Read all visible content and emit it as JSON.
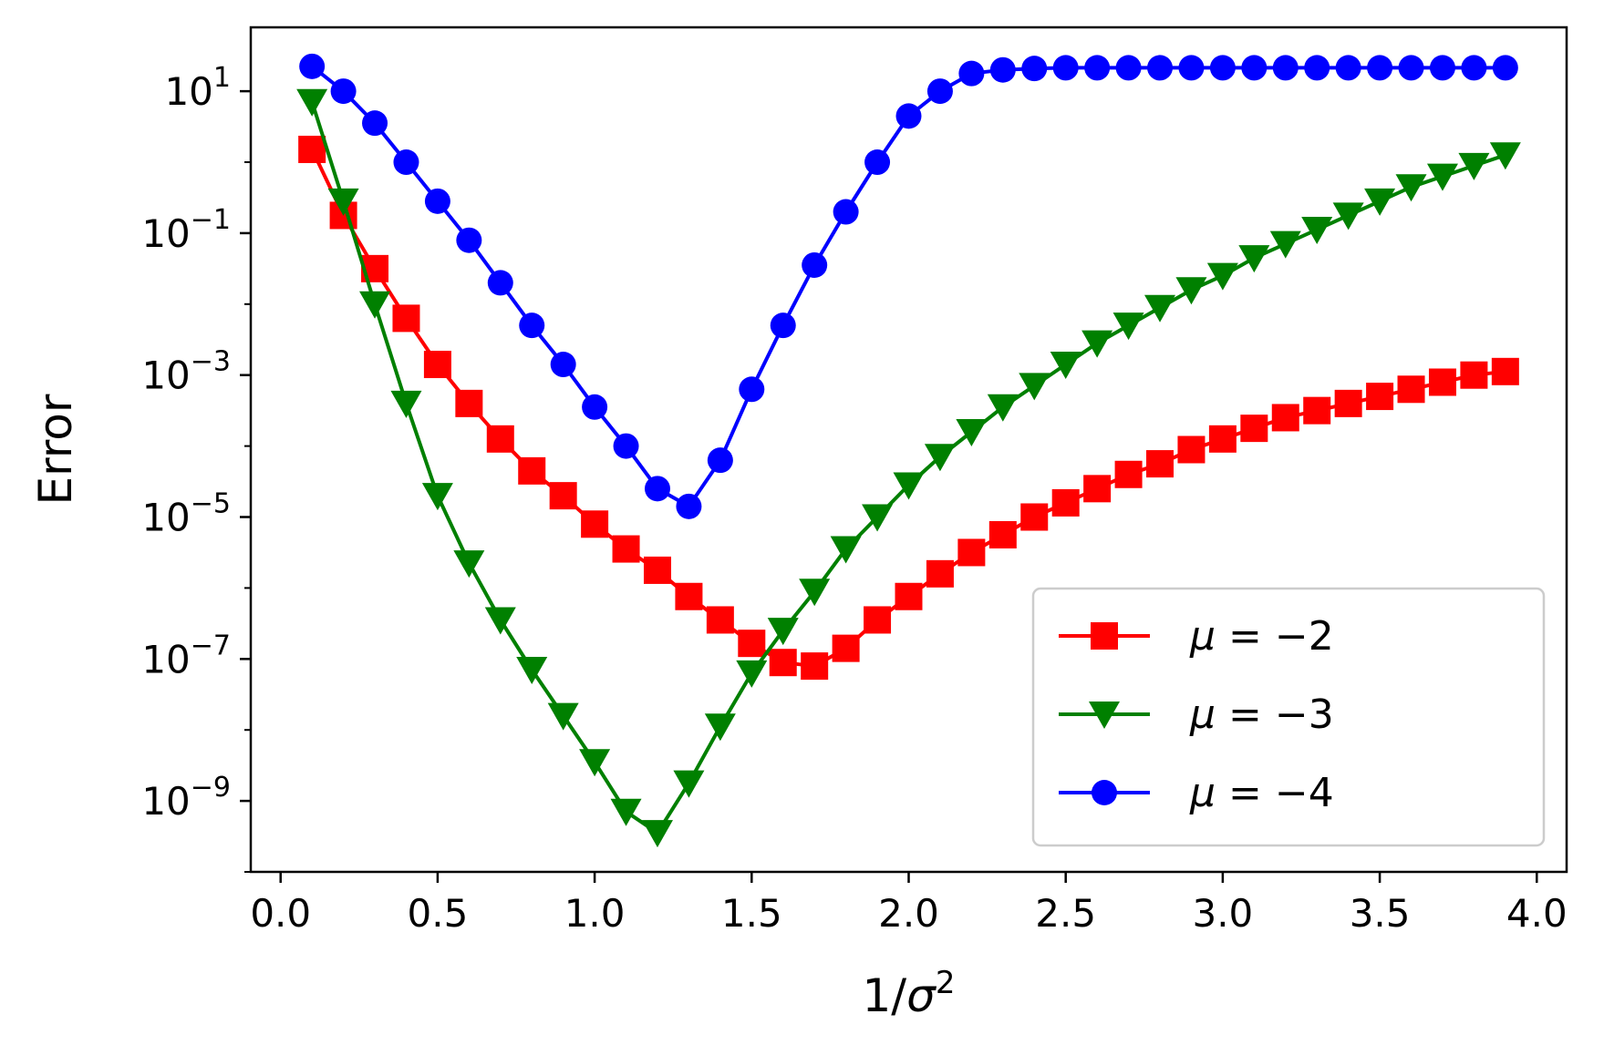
{
  "chart_data": {
    "type": "line",
    "title": "",
    "xlabel": "1/σ²",
    "ylabel": "Error",
    "xscale": "linear",
    "yscale": "log",
    "xlim": [
      -0.095,
      4.095
    ],
    "ylim_log10": [
      -10.0,
      1.9
    ],
    "xticks": [
      0.0,
      0.5,
      1.0,
      1.5,
      2.0,
      2.5,
      3.0,
      3.5,
      4.0
    ],
    "xtick_labels": [
      "0.0",
      "0.5",
      "1.0",
      "1.5",
      "2.0",
      "2.5",
      "3.0",
      "3.5",
      "4.0"
    ],
    "yticks_log10": [
      1,
      -1,
      -3,
      -5,
      -7,
      -9
    ],
    "ytick_labels": [
      {
        "base": "10",
        "exp": "1"
      },
      {
        "base": "10",
        "exp": "−1"
      },
      {
        "base": "10",
        "exp": "−3"
      },
      {
        "base": "10",
        "exp": "−5"
      },
      {
        "base": "10",
        "exp": "−7"
      },
      {
        "base": "10",
        "exp": "−9"
      }
    ],
    "legend_position": "lower-right",
    "x": [
      0.1,
      0.2,
      0.3,
      0.4,
      0.5,
      0.6,
      0.7,
      0.8,
      0.9,
      1.0,
      1.1,
      1.2,
      1.3,
      1.4,
      1.5,
      1.6,
      1.7,
      1.8,
      1.9,
      2.0,
      2.1,
      2.2,
      2.3,
      2.4,
      2.5,
      2.6,
      2.7,
      2.8,
      2.9,
      3.0,
      3.1,
      3.2,
      3.3,
      3.4,
      3.5,
      3.6,
      3.7,
      3.8,
      3.9
    ],
    "series": [
      {
        "name": "μ = −2",
        "color": "#ff0000",
        "marker": "square",
        "log10_values": [
          0.18,
          -0.75,
          -1.5,
          -2.2,
          -2.85,
          -3.4,
          -3.9,
          -4.35,
          -4.7,
          -5.1,
          -5.45,
          -5.75,
          -6.12,
          -6.45,
          -6.78,
          -7.05,
          -7.1,
          -6.85,
          -6.45,
          -6.12,
          -5.8,
          -5.5,
          -5.25,
          -5.0,
          -4.8,
          -4.6,
          -4.4,
          -4.25,
          -4.05,
          -3.9,
          -3.75,
          -3.6,
          -3.5,
          -3.4,
          -3.3,
          -3.2,
          -3.1,
          -3.0,
          -2.95
        ]
      },
      {
        "name": "μ = −3",
        "color": "#008000",
        "marker": "triangle-down",
        "log10_values": [
          0.85,
          -0.55,
          -2.0,
          -3.4,
          -4.7,
          -5.65,
          -6.45,
          -7.15,
          -7.8,
          -8.45,
          -9.15,
          -9.45,
          -8.75,
          -7.95,
          -7.2,
          -6.6,
          -6.05,
          -5.45,
          -5.0,
          -4.55,
          -4.15,
          -3.8,
          -3.45,
          -3.15,
          -2.85,
          -2.55,
          -2.3,
          -2.05,
          -1.8,
          -1.6,
          -1.35,
          -1.15,
          -0.95,
          -0.75,
          -0.55,
          -0.35,
          -0.2,
          -0.05,
          0.1
        ]
      },
      {
        "name": "μ = −4",
        "color": "#0000ff",
        "marker": "circle",
        "log10_values": [
          1.35,
          1.0,
          0.55,
          0.0,
          -0.55,
          -1.1,
          -1.7,
          -2.3,
          -2.85,
          -3.45,
          -4.0,
          -4.6,
          -4.85,
          -4.2,
          -3.2,
          -2.3,
          -1.45,
          -0.7,
          0.0,
          0.65,
          1.0,
          1.25,
          1.3,
          1.32,
          1.33,
          1.33,
          1.33,
          1.33,
          1.33,
          1.33,
          1.33,
          1.33,
          1.33,
          1.33,
          1.33,
          1.33,
          1.33,
          1.33,
          1.33
        ]
      }
    ],
    "legend": [
      {
        "mu": "μ",
        "eq": "=",
        "val": "−2"
      },
      {
        "mu": "μ",
        "eq": "=",
        "val": "−3"
      },
      {
        "mu": "μ",
        "eq": "=",
        "val": "−4"
      }
    ]
  }
}
